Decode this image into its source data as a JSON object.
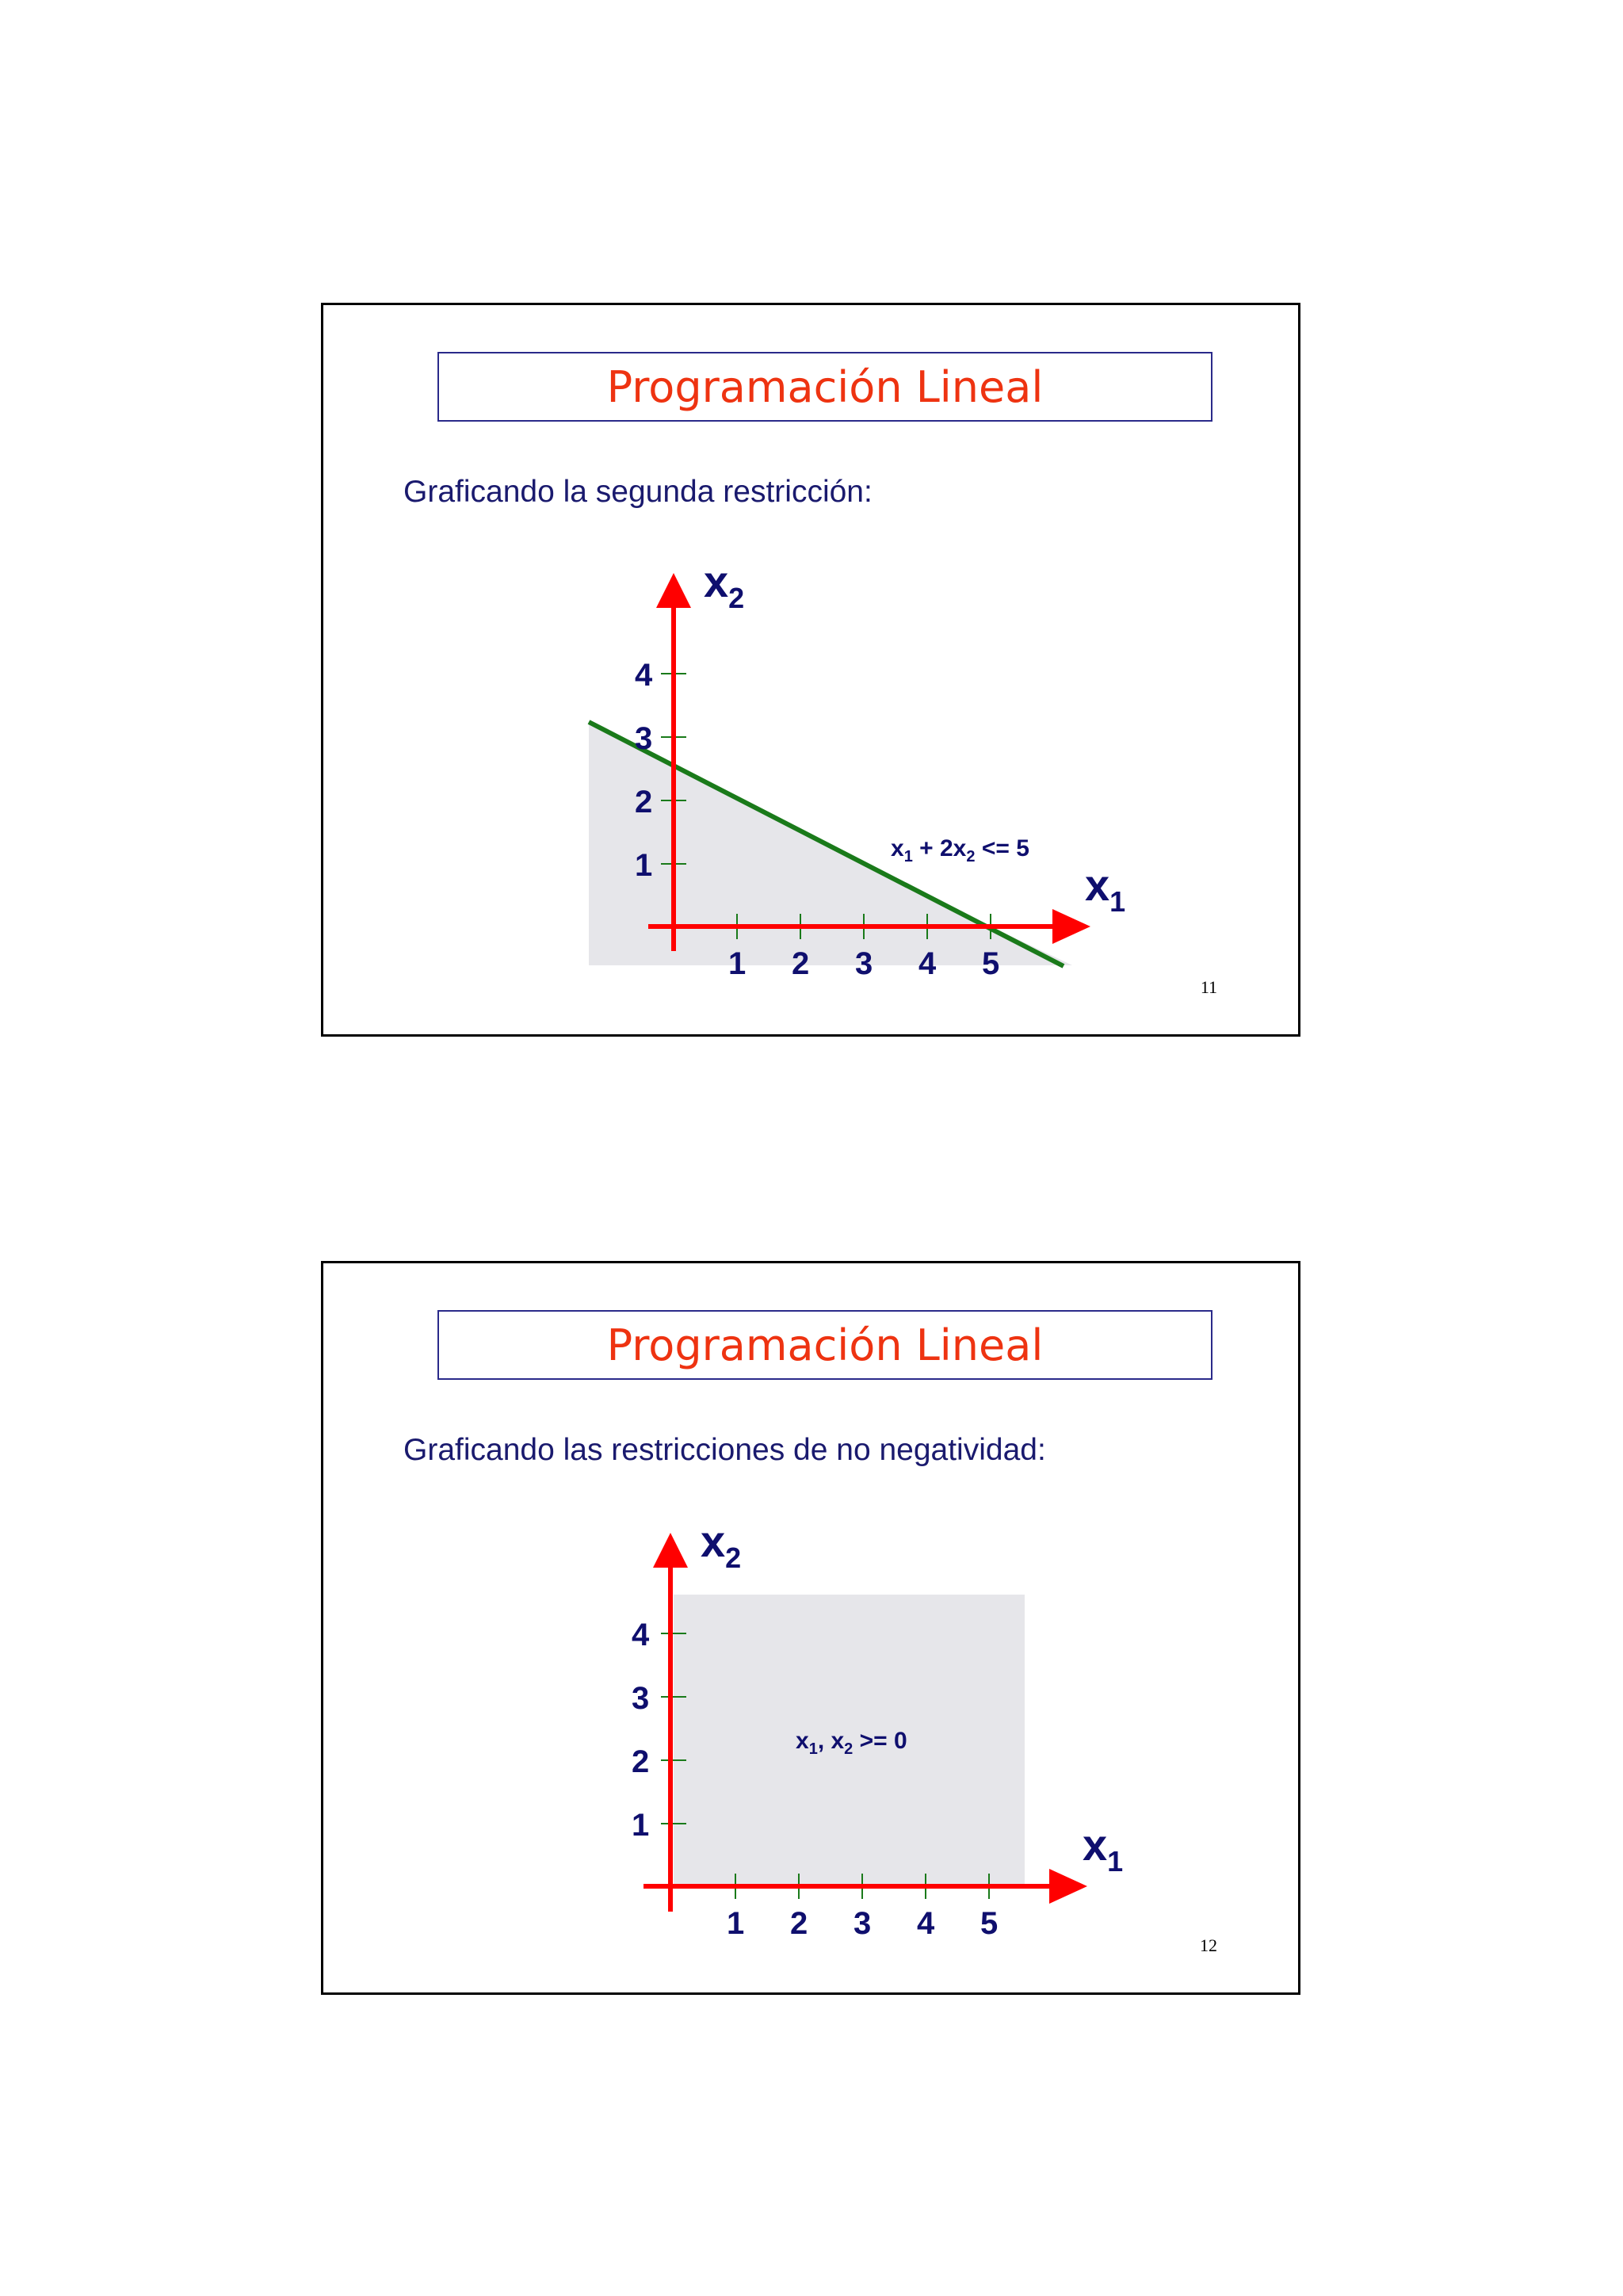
{
  "slides": [
    {
      "title": "Programación Lineal",
      "subtitle": "Graficando la segunda restricción:",
      "page_number": "11",
      "x_axis": {
        "var": "x",
        "sub": "1",
        "ticks": [
          "1",
          "2",
          "3",
          "4",
          "5"
        ]
      },
      "y_axis": {
        "var": "x",
        "sub": "2",
        "ticks": [
          "1",
          "2",
          "3",
          "4"
        ]
      },
      "annotation": {
        "p1": "x",
        "s1": "1",
        "p2": " + 2x",
        "s2": "2",
        "p3": " <= 5"
      }
    },
    {
      "title": "Programación Lineal",
      "subtitle": "Graficando las restricciones de no negatividad:",
      "page_number": "12",
      "x_axis": {
        "var": "x",
        "sub": "1",
        "ticks": [
          "1",
          "2",
          "3",
          "4",
          "5"
        ]
      },
      "y_axis": {
        "var": "x",
        "sub": "2",
        "ticks": [
          "1",
          "2",
          "3",
          "4"
        ]
      },
      "annotation": {
        "p1": "x",
        "s1": "1",
        "p2": ", x",
        "s2": "2",
        "p3": " >= 0"
      }
    }
  ],
  "chart_data": [
    {
      "type": "area",
      "constraint": "x1 + 2x2 <= 5",
      "line": {
        "x": [
          0,
          5
        ],
        "y": [
          2.5,
          0
        ]
      },
      "x_ticks": [
        1,
        2,
        3,
        4,
        5
      ],
      "y_ticks": [
        1,
        2,
        3,
        4
      ],
      "feasible_region": "below line",
      "colors": {
        "axes": "#ff0000",
        "line": "#1a7a1a",
        "region": "#e6e6ea"
      }
    },
    {
      "type": "area",
      "constraint": "x1, x2 >= 0",
      "x_ticks": [
        1,
        2,
        3,
        4,
        5
      ],
      "y_ticks": [
        1,
        2,
        3,
        4
      ],
      "feasible_region": "first quadrant",
      "colors": {
        "axes": "#ff0000",
        "region": "#e6e6ea"
      }
    }
  ]
}
